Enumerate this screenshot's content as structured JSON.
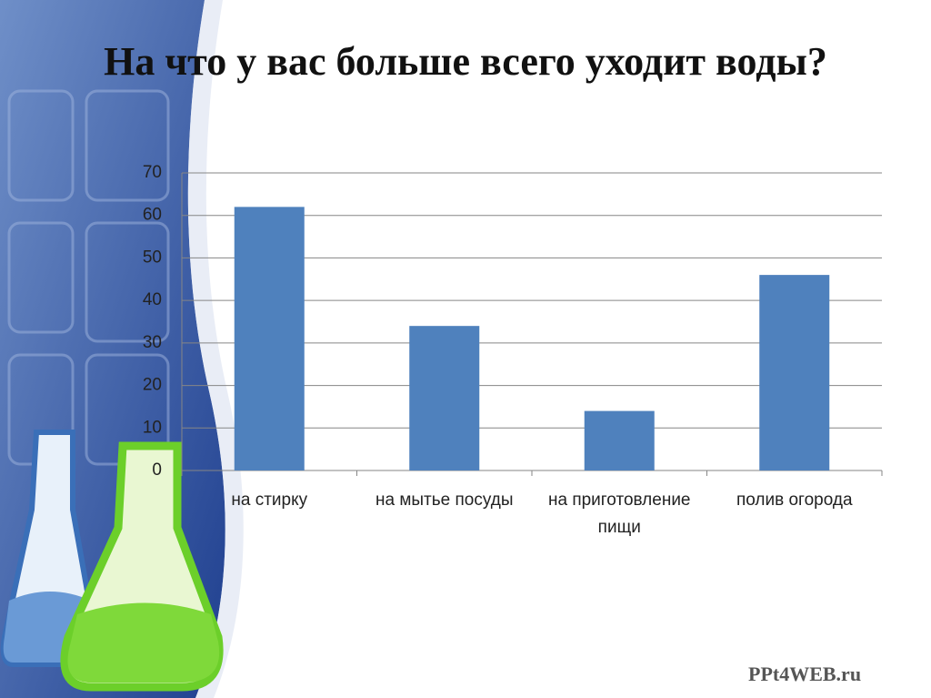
{
  "chart_data": {
    "type": "bar",
    "title": "На что у вас больше всего уходит воды?",
    "categories": [
      "на стирку",
      "на мытье посуды",
      "на приготовление пищи",
      "полив огорода"
    ],
    "values": [
      62,
      34,
      14,
      46
    ],
    "color": "#4f81bd",
    "ylim": [
      0,
      70
    ],
    "yticks": [
      0,
      10,
      20,
      30,
      40,
      50,
      60,
      70
    ],
    "grid": true
  },
  "watermark": "PPt4WEB.ru"
}
